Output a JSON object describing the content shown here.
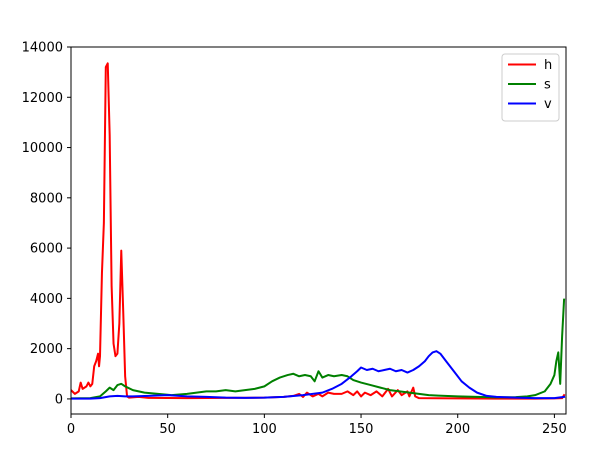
{
  "chart_data": {
    "type": "line",
    "title": "",
    "xlabel": "",
    "ylabel": "",
    "xlim": [
      0,
      256
    ],
    "ylim": [
      -600,
      14000
    ],
    "xticks": [
      0,
      50,
      100,
      150,
      200,
      250
    ],
    "yticks": [
      0,
      2000,
      4000,
      6000,
      8000,
      10000,
      12000,
      14000
    ],
    "grid": false,
    "legend_position": "top-right",
    "series": [
      {
        "name": "h",
        "color": "#ff0000",
        "points": [
          [
            0,
            350
          ],
          [
            2,
            200
          ],
          [
            4,
            300
          ],
          [
            5,
            650
          ],
          [
            6,
            400
          ],
          [
            8,
            500
          ],
          [
            9,
            650
          ],
          [
            10,
            500
          ],
          [
            11,
            600
          ],
          [
            12,
            1300
          ],
          [
            13,
            1500
          ],
          [
            14,
            1800
          ],
          [
            14.5,
            1300
          ],
          [
            15,
            1700
          ],
          [
            16,
            5000
          ],
          [
            17,
            7000
          ],
          [
            18,
            13200
          ],
          [
            19,
            13350
          ],
          [
            20,
            10500
          ],
          [
            21,
            4500
          ],
          [
            22,
            2200
          ],
          [
            23,
            1700
          ],
          [
            24,
            1800
          ],
          [
            25,
            3000
          ],
          [
            26,
            5900
          ],
          [
            27,
            3500
          ],
          [
            28,
            900
          ],
          [
            29,
            100
          ],
          [
            30,
            50
          ],
          [
            35,
            80
          ],
          [
            40,
            40
          ],
          [
            60,
            30
          ],
          [
            80,
            40
          ],
          [
            100,
            50
          ],
          [
            110,
            80
          ],
          [
            115,
            120
          ],
          [
            118,
            200
          ],
          [
            120,
            80
          ],
          [
            122,
            250
          ],
          [
            125,
            100
          ],
          [
            128,
            200
          ],
          [
            130,
            100
          ],
          [
            133,
            250
          ],
          [
            136,
            200
          ],
          [
            140,
            200
          ],
          [
            143,
            300
          ],
          [
            146,
            150
          ],
          [
            148,
            300
          ],
          [
            150,
            100
          ],
          [
            152,
            250
          ],
          [
            155,
            150
          ],
          [
            158,
            300
          ],
          [
            161,
            100
          ],
          [
            164,
            400
          ],
          [
            166,
            100
          ],
          [
            169,
            350
          ],
          [
            171,
            150
          ],
          [
            174,
            300
          ],
          [
            175,
            100
          ],
          [
            177,
            450
          ],
          [
            178,
            100
          ],
          [
            180,
            30
          ],
          [
            200,
            20
          ],
          [
            220,
            10
          ],
          [
            240,
            10
          ],
          [
            250,
            20
          ],
          [
            254,
            30
          ],
          [
            255,
            150
          ]
        ]
      },
      {
        "name": "s",
        "color": "#008000",
        "points": [
          [
            0,
            20
          ],
          [
            10,
            30
          ],
          [
            15,
            100
          ],
          [
            18,
            300
          ],
          [
            20,
            450
          ],
          [
            22,
            350
          ],
          [
            24,
            550
          ],
          [
            26,
            600
          ],
          [
            28,
            500
          ],
          [
            32,
            350
          ],
          [
            38,
            250
          ],
          [
            45,
            200
          ],
          [
            52,
            150
          ],
          [
            60,
            200
          ],
          [
            65,
            250
          ],
          [
            70,
            300
          ],
          [
            75,
            300
          ],
          [
            80,
            350
          ],
          [
            85,
            300
          ],
          [
            90,
            350
          ],
          [
            95,
            400
          ],
          [
            100,
            500
          ],
          [
            104,
            700
          ],
          [
            108,
            850
          ],
          [
            112,
            950
          ],
          [
            115,
            1000
          ],
          [
            118,
            900
          ],
          [
            121,
            950
          ],
          [
            124,
            900
          ],
          [
            126,
            700
          ],
          [
            128,
            1100
          ],
          [
            130,
            850
          ],
          [
            133,
            950
          ],
          [
            136,
            900
          ],
          [
            140,
            950
          ],
          [
            143,
            900
          ],
          [
            146,
            750
          ],
          [
            150,
            650
          ],
          [
            155,
            550
          ],
          [
            160,
            450
          ],
          [
            165,
            350
          ],
          [
            170,
            300
          ],
          [
            175,
            250
          ],
          [
            180,
            200
          ],
          [
            185,
            150
          ],
          [
            190,
            130
          ],
          [
            200,
            100
          ],
          [
            210,
            80
          ],
          [
            220,
            60
          ],
          [
            230,
            70
          ],
          [
            236,
            100
          ],
          [
            240,
            150
          ],
          [
            245,
            300
          ],
          [
            248,
            600
          ],
          [
            250,
            950
          ],
          [
            251,
            1500
          ],
          [
            252,
            1850
          ],
          [
            253,
            600
          ],
          [
            254,
            2500
          ],
          [
            255,
            3950
          ]
        ]
      },
      {
        "name": "v",
        "color": "#0000ff",
        "points": [
          [
            0,
            10
          ],
          [
            10,
            10
          ],
          [
            15,
            30
          ],
          [
            20,
            100
          ],
          [
            24,
            120
          ],
          [
            28,
            100
          ],
          [
            32,
            100
          ],
          [
            40,
            120
          ],
          [
            50,
            150
          ],
          [
            60,
            100
          ],
          [
            70,
            80
          ],
          [
            80,
            50
          ],
          [
            90,
            40
          ],
          [
            100,
            50
          ],
          [
            110,
            80
          ],
          [
            120,
            150
          ],
          [
            125,
            200
          ],
          [
            130,
            250
          ],
          [
            135,
            400
          ],
          [
            140,
            600
          ],
          [
            145,
            900
          ],
          [
            148,
            1100
          ],
          [
            150,
            1250
          ],
          [
            153,
            1150
          ],
          [
            156,
            1200
          ],
          [
            159,
            1100
          ],
          [
            162,
            1150
          ],
          [
            165,
            1200
          ],
          [
            168,
            1100
          ],
          [
            171,
            1150
          ],
          [
            174,
            1050
          ],
          [
            177,
            1150
          ],
          [
            180,
            1300
          ],
          [
            183,
            1500
          ],
          [
            185,
            1700
          ],
          [
            187,
            1850
          ],
          [
            189,
            1900
          ],
          [
            191,
            1800
          ],
          [
            194,
            1500
          ],
          [
            198,
            1100
          ],
          [
            202,
            700
          ],
          [
            206,
            450
          ],
          [
            210,
            250
          ],
          [
            215,
            120
          ],
          [
            220,
            80
          ],
          [
            230,
            50
          ],
          [
            240,
            30
          ],
          [
            250,
            30
          ],
          [
            255,
            80
          ]
        ]
      }
    ]
  }
}
